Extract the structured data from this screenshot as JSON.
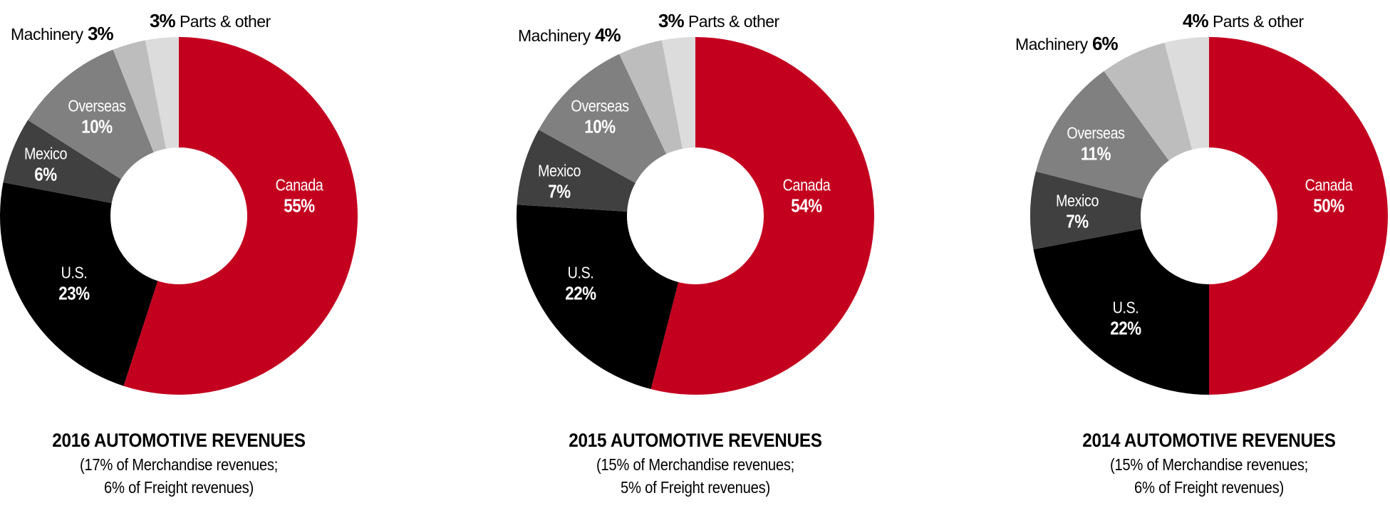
{
  "chart_data": [
    {
      "type": "pie",
      "variant": "donut",
      "title": "2016 AUTOMOTIVE REVENUES",
      "subtitle_lines": [
        "(17% of Merchandise revenues;",
        "6% of Freight revenues)"
      ],
      "categories": [
        "Canada",
        "U.S.",
        "Mexico",
        "Overseas",
        "Machinery",
        "Parts & other"
      ],
      "values": [
        55,
        23,
        6,
        10,
        3,
        3
      ],
      "value_labels": [
        "55%",
        "23%",
        "6%",
        "10%",
        "3%",
        "3%"
      ],
      "colors": [
        "#c4001f",
        "#000000",
        "#404040",
        "#808080",
        "#bdbdbd",
        "#dcdcdc"
      ],
      "start_angle": "12 o'clock, clockwise"
    },
    {
      "type": "pie",
      "variant": "donut",
      "title": "2015 AUTOMOTIVE REVENUES",
      "subtitle_lines": [
        "(15% of Merchandise revenues;",
        "5% of Freight revenues)"
      ],
      "categories": [
        "Canada",
        "U.S.",
        "Mexico",
        "Overseas",
        "Machinery",
        "Parts & other"
      ],
      "values": [
        54,
        22,
        7,
        10,
        4,
        3
      ],
      "value_labels": [
        "54%",
        "22%",
        "7%",
        "10%",
        "4%",
        "3%"
      ],
      "colors": [
        "#c4001f",
        "#000000",
        "#404040",
        "#808080",
        "#bdbdbd",
        "#dcdcdc"
      ],
      "start_angle": "12 o'clock, clockwise"
    },
    {
      "type": "pie",
      "variant": "donut",
      "title": "2014 AUTOMOTIVE REVENUES",
      "subtitle_lines": [
        "(15% of Merchandise revenues;",
        "6% of Freight revenues)"
      ],
      "categories": [
        "Canada",
        "U.S.",
        "Mexico",
        "Overseas",
        "Machinery",
        "Parts & other"
      ],
      "values": [
        50,
        22,
        7,
        11,
        6,
        4
      ],
      "value_labels": [
        "50%",
        "22%",
        "7%",
        "11%",
        "6%",
        "4%"
      ],
      "colors": [
        "#c4001f",
        "#000000",
        "#404040",
        "#808080",
        "#bdbdbd",
        "#dcdcdc"
      ],
      "start_angle": "12 o'clock, clockwise"
    }
  ],
  "charts": [
    {
      "title": "2016 AUTOMOTIVE REVENUES",
      "sub1": "(17% of Merchandise revenues;",
      "sub2": "6% of Freight revenues)",
      "canada": {
        "name": "Canada",
        "pct": "55%"
      },
      "us": {
        "name": "U.S.",
        "pct": "23%"
      },
      "mexico": {
        "name": "Mexico",
        "pct": "6%"
      },
      "overseas": {
        "name": "Overseas",
        "pct": "10%"
      },
      "machinery": {
        "name": "Machinery",
        "pct": "3%"
      },
      "parts": {
        "name": "Parts & other",
        "pct": "3%"
      }
    },
    {
      "title": "2015 AUTOMOTIVE REVENUES",
      "sub1": "(15% of Merchandise revenues;",
      "sub2": "5% of Freight revenues)",
      "canada": {
        "name": "Canada",
        "pct": "54%"
      },
      "us": {
        "name": "U.S.",
        "pct": "22%"
      },
      "mexico": {
        "name": "Mexico",
        "pct": "7%"
      },
      "overseas": {
        "name": "Overseas",
        "pct": "10%"
      },
      "machinery": {
        "name": "Machinery",
        "pct": "4%"
      },
      "parts": {
        "name": "Parts & other",
        "pct": "3%"
      }
    },
    {
      "title": "2014 AUTOMOTIVE REVENUES",
      "sub1": "(15% of Merchandise revenues;",
      "sub2": "6% of Freight revenues)",
      "canada": {
        "name": "Canada",
        "pct": "50%"
      },
      "us": {
        "name": "U.S.",
        "pct": "22%"
      },
      "mexico": {
        "name": "Mexico",
        "pct": "7%"
      },
      "overseas": {
        "name": "Overseas",
        "pct": "11%"
      },
      "machinery": {
        "name": "Machinery",
        "pct": "6%"
      },
      "parts": {
        "name": "Parts & other",
        "pct": "4%"
      }
    }
  ]
}
